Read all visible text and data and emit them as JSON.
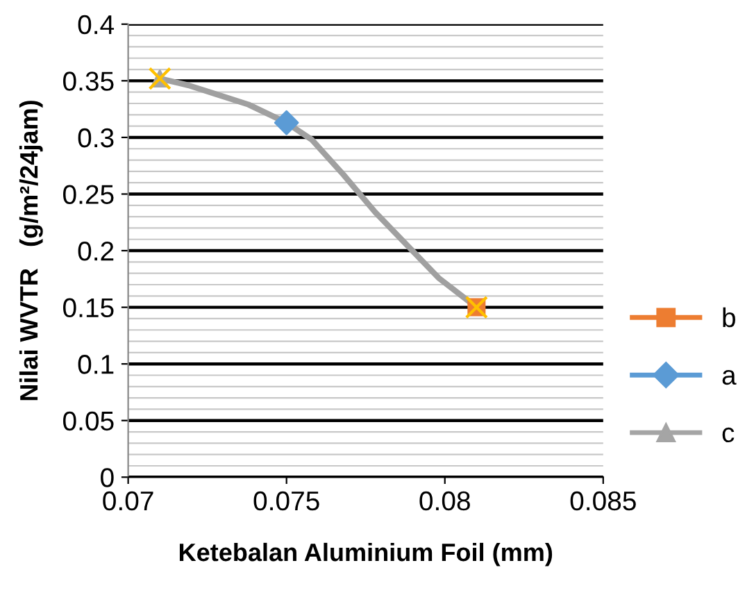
{
  "chart_data": {
    "type": "scatter",
    "xlabel": "Ketebalan Aluminium Foil (mm)",
    "ylabel": "Nilai WVTR   (g/m²/24jam)",
    "xlim": [
      0.07,
      0.085
    ],
    "xticks": [
      0.07,
      0.075,
      0.08,
      0.085
    ],
    "ylim": [
      0,
      0.4
    ],
    "yticks": [
      0,
      0.05,
      0.1,
      0.15,
      0.2,
      0.25,
      0.3,
      0.35,
      0.4
    ],
    "grid": "y",
    "legend": "right",
    "series": [
      {
        "type": "line",
        "color": "#a0a0a0",
        "marker": "none",
        "x": [
          0.071,
          0.0719,
          0.0728,
          0.0738,
          0.075,
          0.0758,
          0.0768,
          0.0778,
          0.0788,
          0.0798,
          0.081
        ],
        "values": [
          0.352,
          0.346,
          0.338,
          0.329,
          0.313,
          0.298,
          0.267,
          0.234,
          0.205,
          0.176,
          0.15
        ]
      },
      {
        "name": "b",
        "color": "#ed7d31",
        "marker": "square",
        "x": [
          0.081
        ],
        "values": [
          0.15
        ]
      },
      {
        "name": "a",
        "color": "#5b9bd5",
        "marker": "diamond",
        "x": [
          0.075
        ],
        "values": [
          0.313
        ]
      },
      {
        "name": "c",
        "color": "#a5a5a5",
        "marker": "triangle",
        "x": [
          0.071
        ],
        "values": [
          0.352
        ]
      },
      {
        "color": "#ffc000",
        "marker": "cross",
        "x": [
          0.071,
          0.081
        ],
        "values": [
          0.352,
          0.15
        ]
      }
    ]
  }
}
